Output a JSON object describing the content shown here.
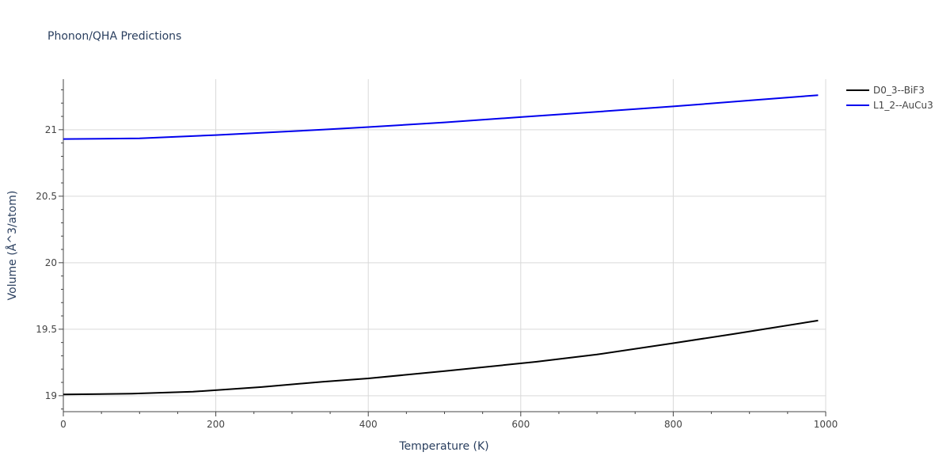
{
  "chart_data": {
    "type": "line",
    "title": "Phonon/QHA Predictions",
    "xlabel": "Temperature (K)",
    "ylabel": "Volume (Å^3/atom)",
    "xlim": [
      0,
      1000
    ],
    "ylim": [
      18.88,
      21.38
    ],
    "xticks": [
      0,
      200,
      400,
      600,
      800,
      1000
    ],
    "yticks": [
      19,
      19.5,
      20,
      20.5,
      21
    ],
    "ytick_labels": [
      "19",
      "19.5",
      "20",
      "20.5",
      "21"
    ],
    "grid": true,
    "legend_position": "top-right",
    "series": [
      {
        "name": "D0_3--BiF3",
        "color": "#000000",
        "x": [
          0,
          90,
          170,
          260,
          340,
          400,
          500,
          620,
          700,
          800,
          880,
          990
        ],
        "y": [
          19.01,
          19.015,
          19.03,
          19.065,
          19.105,
          19.13,
          19.185,
          19.255,
          19.31,
          19.395,
          19.465,
          19.565
        ]
      },
      {
        "name": "L1_2--AuCu3",
        "color": "#0000ee",
        "x": [
          0,
          100,
          200,
          340,
          400,
          500,
          600,
          700,
          800,
          900,
          990
        ],
        "y": [
          20.93,
          20.935,
          20.96,
          21.0,
          21.02,
          21.055,
          21.095,
          21.135,
          21.175,
          21.22,
          21.26
        ]
      }
    ]
  }
}
